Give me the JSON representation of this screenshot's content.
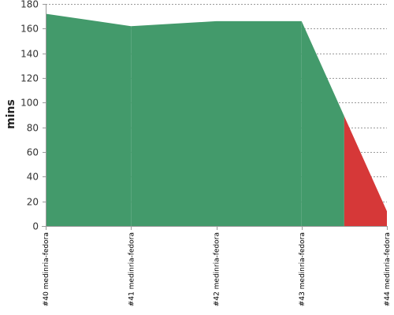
{
  "chart_data": {
    "type": "area",
    "title": "",
    "xlabel": "",
    "ylabel": "mins",
    "categories": [
      "#40 medinria-fedora",
      "#41 medinria-fedora",
      "#42 medinria-fedora",
      "#43 medinria-fedora",
      "#44 medinria-fedora"
    ],
    "series": [
      {
        "values": [
          172,
          162,
          166,
          166,
          12
        ],
        "statuses": [
          "success",
          "success",
          "success",
          "success",
          "failure"
        ]
      }
    ],
    "ylim": [
      0,
      180
    ],
    "yticks": [
      0,
      20,
      40,
      60,
      80,
      100,
      120,
      140,
      160,
      180
    ],
    "grid": "horizontal dashed",
    "legend": "none",
    "colors": {
      "success": "#439a6b",
      "failure": "#d63838",
      "grid": "#7a7a7a",
      "axis": "#9a9a9a"
    }
  }
}
